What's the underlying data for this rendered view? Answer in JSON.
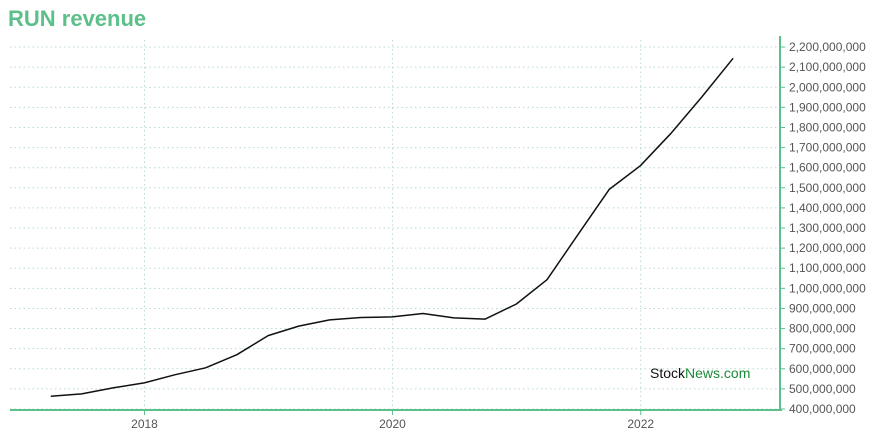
{
  "title": "RUN revenue",
  "colors": {
    "accent": "#5cc08a",
    "line": "#111111",
    "grid": "#b9dcc8",
    "tick_text": "#555555"
  },
  "watermark": {
    "part1": "Stock",
    "part2": "News.com"
  },
  "chart_data": {
    "type": "line",
    "title": "RUN revenue",
    "xlabel": "",
    "ylabel": "",
    "x_ticks": [
      "2018",
      "2020",
      "2022"
    ],
    "y_ticks": [
      "400,000,000",
      "500,000,000",
      "600,000,000",
      "700,000,000",
      "800,000,000",
      "900,000,000",
      "1,000,000,000",
      "1,100,000,000",
      "1,200,000,000",
      "1,300,000,000",
      "1,400,000,000",
      "1,500,000,000",
      "1,600,000,000",
      "1,700,000,000",
      "1,800,000,000",
      "1,900,000,000",
      "2,000,000,000",
      "2,100,000,000",
      "2,200,000,000"
    ],
    "xlim": [
      "2016-12-01",
      "2023-02-15"
    ],
    "ylim": [
      395000000,
      2235000000
    ],
    "grid": true,
    "y_axis_side": "right",
    "series": [
      {
        "x": [
          "2017-03-31",
          "2017-06-30",
          "2017-09-30",
          "2017-12-31",
          "2018-03-31",
          "2018-06-30",
          "2018-09-30",
          "2018-12-31",
          "2019-03-31",
          "2019-06-30",
          "2019-09-30",
          "2019-12-31",
          "2020-03-31",
          "2020-06-30",
          "2020-09-30",
          "2020-12-31",
          "2021-03-31",
          "2021-06-30",
          "2021-09-30",
          "2021-12-31",
          "2022-03-31",
          "2022-06-30",
          "2022-09-30"
        ],
        "values": [
          463000000,
          475000000,
          505000000,
          530000000,
          570000000,
          605000000,
          670000000,
          765000000,
          812000000,
          843000000,
          855000000,
          858000000,
          875000000,
          853000000,
          847000000,
          922000000,
          1043000000,
          1267000000,
          1492000000,
          1610000000,
          1771000000,
          1952000000,
          2144000000
        ]
      }
    ]
  }
}
